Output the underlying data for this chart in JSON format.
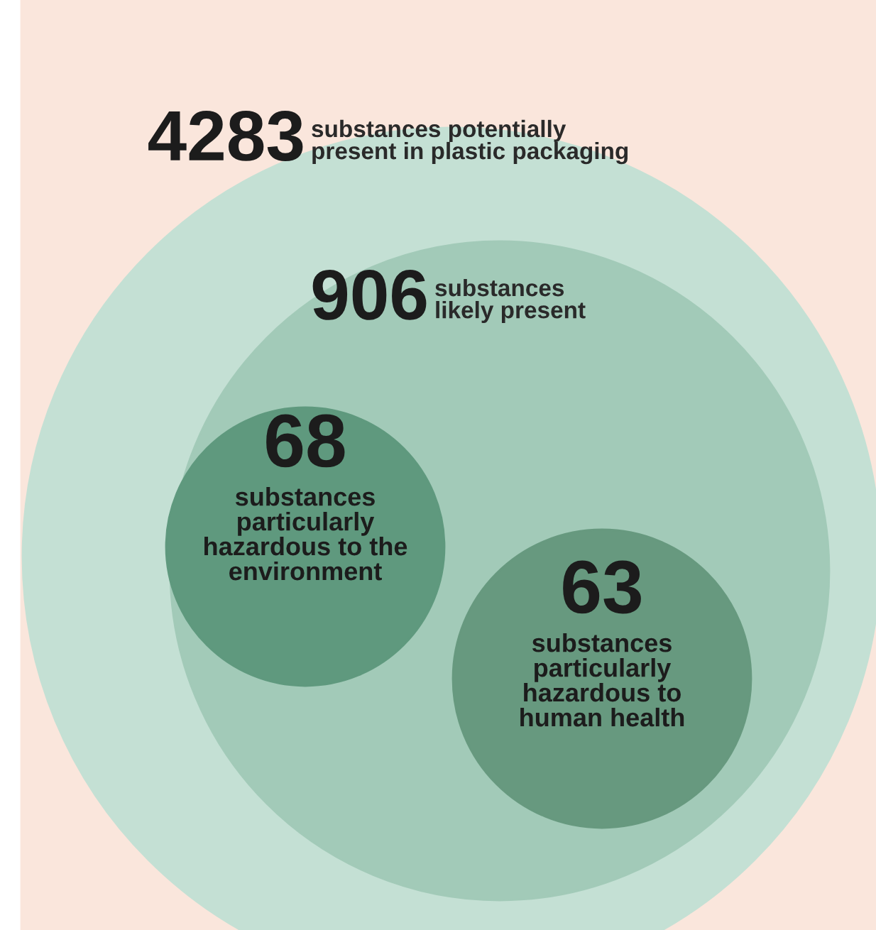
{
  "chart_data": {
    "type": "other",
    "categories": [
      "substances potentially\npresent in plastic packaging",
      "substances\nlikely present",
      "substances\nparticularly\nhazardous to the\nenvironment",
      "substances\nparticularly\nhazardous to\nhuman health"
    ],
    "values": [
      4283,
      906,
      68,
      63
    ],
    "colors": [
      "#c4e0d4",
      "#a2cab8",
      "#5f997e",
      "#67997f"
    ],
    "data_labels": true
  }
}
